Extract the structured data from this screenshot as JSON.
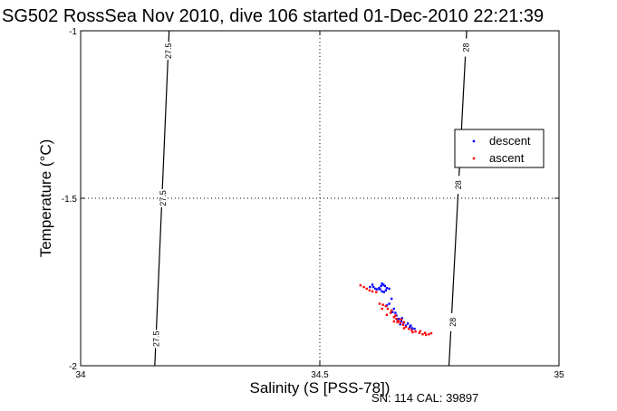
{
  "chart_data": {
    "type": "scatter",
    "title": "SG502 RossSea Nov 2010, dive 106 started 01-Dec-2010 22:21:39",
    "xlabel": "Salinity (S [PSS-78])",
    "ylabel": "Temperature (°C)",
    "xlim": [
      34,
      35
    ],
    "ylim": [
      -2,
      -1
    ],
    "x_ticks": [
      "34",
      "34.5",
      "35"
    ],
    "y_ticks": [
      "-1",
      "-1.5",
      "-2"
    ],
    "grid": "dotted",
    "legend_position": "right",
    "footer": "SN: 114  CAL: 39897",
    "contours": [
      {
        "label": "27.5",
        "points": [
          [
            34.185,
            -1.0
          ],
          [
            34.155,
            -2.0
          ]
        ],
        "label_positions": [
          [
            34.184,
            -1.06
          ],
          [
            34.172,
            -1.5
          ],
          [
            34.158,
            -1.92
          ]
        ]
      },
      {
        "label": "28",
        "points": [
          [
            34.807,
            -1.0
          ],
          [
            34.77,
            -2.0
          ]
        ],
        "label_positions": [
          [
            34.806,
            -1.05
          ],
          [
            34.79,
            -1.46
          ],
          [
            34.778,
            -1.87
          ]
        ]
      }
    ],
    "series": [
      {
        "name": "descent",
        "color": "#0000ff",
        "points": [
          [
            34.612,
            -1.765
          ],
          [
            34.616,
            -1.77
          ],
          [
            34.62,
            -1.772
          ],
          [
            34.624,
            -1.768
          ],
          [
            34.628,
            -1.762
          ],
          [
            34.63,
            -1.755
          ],
          [
            34.633,
            -1.758
          ],
          [
            34.636,
            -1.762
          ],
          [
            34.64,
            -1.768
          ],
          [
            34.638,
            -1.775
          ],
          [
            34.634,
            -1.78
          ],
          [
            34.63,
            -1.778
          ],
          [
            34.626,
            -1.772
          ],
          [
            34.645,
            -1.77
          ],
          [
            34.605,
            -1.765
          ],
          [
            34.61,
            -1.758
          ],
          [
            34.65,
            -1.8
          ],
          [
            34.645,
            -1.815
          ],
          [
            34.655,
            -1.83
          ],
          [
            34.66,
            -1.85
          ],
          [
            34.665,
            -1.86
          ],
          [
            34.67,
            -1.868
          ],
          [
            34.675,
            -1.872
          ],
          [
            34.668,
            -1.876
          ],
          [
            34.662,
            -1.862
          ],
          [
            34.68,
            -1.88
          ],
          [
            34.688,
            -1.885
          ],
          [
            34.693,
            -1.888
          ],
          [
            34.698,
            -1.89
          ],
          [
            34.658,
            -1.842
          ],
          [
            34.652,
            -1.84
          ],
          [
            34.64,
            -1.82
          ],
          [
            34.672,
            -1.858
          ],
          [
            34.684,
            -1.874
          ],
          [
            34.69,
            -1.88
          ]
        ]
      },
      {
        "name": "ascent",
        "color": "#ff0000",
        "points": [
          [
            34.585,
            -1.76
          ],
          [
            34.592,
            -1.765
          ],
          [
            34.598,
            -1.77
          ],
          [
            34.604,
            -1.775
          ],
          [
            34.61,
            -1.778
          ],
          [
            34.618,
            -1.78
          ],
          [
            34.625,
            -1.815
          ],
          [
            34.632,
            -1.818
          ],
          [
            34.638,
            -1.822
          ],
          [
            34.642,
            -1.83
          ],
          [
            34.648,
            -1.842
          ],
          [
            34.655,
            -1.855
          ],
          [
            34.66,
            -1.86
          ],
          [
            34.664,
            -1.866
          ],
          [
            34.668,
            -1.872
          ],
          [
            34.674,
            -1.878
          ],
          [
            34.68,
            -1.884
          ],
          [
            34.686,
            -1.89
          ],
          [
            34.692,
            -1.894
          ],
          [
            34.7,
            -1.898
          ],
          [
            34.708,
            -1.902
          ],
          [
            34.715,
            -1.906
          ],
          [
            34.722,
            -1.908
          ],
          [
            34.728,
            -1.906
          ],
          [
            34.733,
            -1.903
          ],
          [
            34.662,
            -1.87
          ],
          [
            34.67,
            -1.862
          ],
          [
            34.676,
            -1.87
          ],
          [
            34.658,
            -1.85
          ],
          [
            34.65,
            -1.835
          ],
          [
            34.64,
            -1.848
          ],
          [
            34.655,
            -1.868
          ],
          [
            34.676,
            -1.888
          ],
          [
            34.694,
            -1.9
          ],
          [
            34.71,
            -1.897
          ],
          [
            34.72,
            -1.902
          ],
          [
            34.63,
            -1.83
          ]
        ]
      }
    ]
  }
}
